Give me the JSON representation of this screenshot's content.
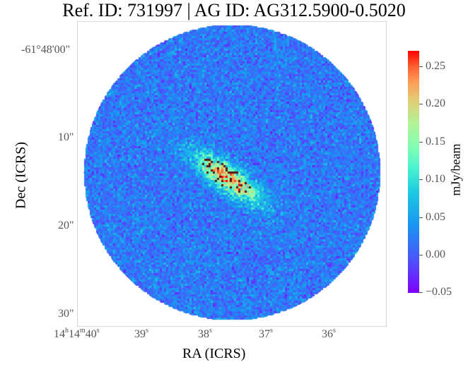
{
  "title": "Ref. ID: 731997 | AG ID: AG312.5900-0.5020",
  "xlabel": "RA (ICRS)",
  "ylabel": "Dec (ICRS)",
  "yticks": [
    "-61°48'00\"",
    "10\"",
    "20\"",
    "30\""
  ],
  "xticks": [
    {
      "h": "14",
      "m": "14",
      "s": "40"
    },
    {
      "s": "39"
    },
    {
      "s": "38"
    },
    {
      "s": "37"
    },
    {
      "s": "36"
    }
  ],
  "colorbar": {
    "label": "mJy/beam",
    "ticks": [
      "0.25",
      "0.20",
      "0.15",
      "0.10",
      "0.05",
      "0.00",
      "−0.05"
    ],
    "min": -0.05,
    "max": 0.27,
    "colormap": "rainbow"
  }
}
